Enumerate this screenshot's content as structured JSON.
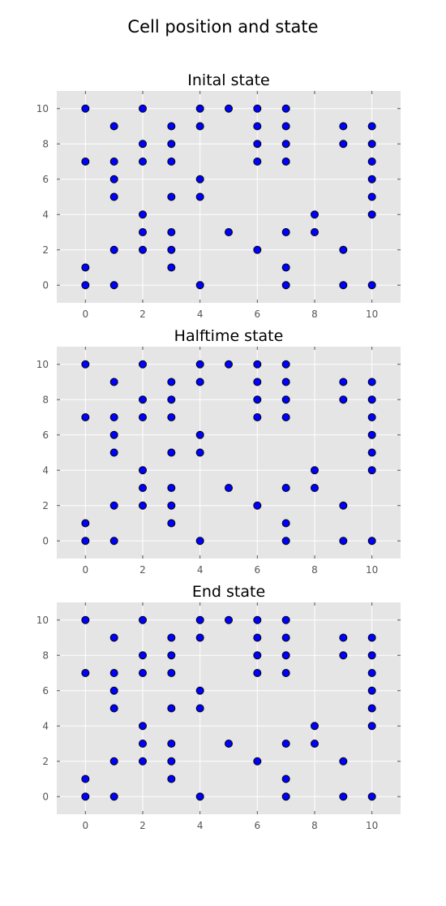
{
  "figure": {
    "title": "Cell position and state"
  },
  "chart_data": [
    {
      "type": "scatter",
      "title": "Inital state",
      "xlim": [
        -1,
        11
      ],
      "ylim": [
        -1,
        11
      ],
      "x_ticks": [
        0,
        2,
        4,
        6,
        8,
        10
      ],
      "y_ticks": [
        0,
        2,
        4,
        6,
        8,
        10
      ],
      "grid": true,
      "marker_color": "#0000ff",
      "points": [
        [
          0,
          10
        ],
        [
          2,
          10
        ],
        [
          4,
          10
        ],
        [
          5,
          10
        ],
        [
          6,
          10
        ],
        [
          7,
          10
        ],
        [
          1,
          9
        ],
        [
          3,
          9
        ],
        [
          4,
          9
        ],
        [
          6,
          9
        ],
        [
          7,
          9
        ],
        [
          9,
          9
        ],
        [
          10,
          9
        ],
        [
          2,
          8
        ],
        [
          3,
          8
        ],
        [
          6,
          8
        ],
        [
          7,
          8
        ],
        [
          9,
          8
        ],
        [
          10,
          8
        ],
        [
          0,
          7
        ],
        [
          1,
          7
        ],
        [
          2,
          7
        ],
        [
          3,
          7
        ],
        [
          6,
          7
        ],
        [
          7,
          7
        ],
        [
          10,
          7
        ],
        [
          1,
          6
        ],
        [
          4,
          6
        ],
        [
          10,
          6
        ],
        [
          1,
          5
        ],
        [
          3,
          5
        ],
        [
          4,
          5
        ],
        [
          10,
          5
        ],
        [
          2,
          4
        ],
        [
          8,
          4
        ],
        [
          10,
          4
        ],
        [
          2,
          3
        ],
        [
          3,
          3
        ],
        [
          5,
          3
        ],
        [
          7,
          3
        ],
        [
          8,
          3
        ],
        [
          1,
          2
        ],
        [
          2,
          2
        ],
        [
          3,
          2
        ],
        [
          6,
          2
        ],
        [
          9,
          2
        ],
        [
          0,
          1
        ],
        [
          3,
          1
        ],
        [
          7,
          1
        ],
        [
          0,
          0
        ],
        [
          1,
          0
        ],
        [
          4,
          0
        ],
        [
          7,
          0
        ],
        [
          9,
          0
        ],
        [
          10,
          0
        ]
      ]
    },
    {
      "type": "scatter",
      "title": "Halftime state",
      "xlim": [
        -1,
        11
      ],
      "ylim": [
        -1,
        11
      ],
      "x_ticks": [
        0,
        2,
        4,
        6,
        8,
        10
      ],
      "y_ticks": [
        0,
        2,
        4,
        6,
        8,
        10
      ],
      "grid": true,
      "marker_color": "#0000ff",
      "points": [
        [
          0,
          10
        ],
        [
          2,
          10
        ],
        [
          4,
          10
        ],
        [
          5,
          10
        ],
        [
          6,
          10
        ],
        [
          7,
          10
        ],
        [
          1,
          9
        ],
        [
          3,
          9
        ],
        [
          4,
          9
        ],
        [
          6,
          9
        ],
        [
          7,
          9
        ],
        [
          9,
          9
        ],
        [
          10,
          9
        ],
        [
          2,
          8
        ],
        [
          3,
          8
        ],
        [
          6,
          8
        ],
        [
          7,
          8
        ],
        [
          9,
          8
        ],
        [
          10,
          8
        ],
        [
          0,
          7
        ],
        [
          1,
          7
        ],
        [
          2,
          7
        ],
        [
          3,
          7
        ],
        [
          6,
          7
        ],
        [
          7,
          7
        ],
        [
          10,
          7
        ],
        [
          1,
          6
        ],
        [
          4,
          6
        ],
        [
          10,
          6
        ],
        [
          1,
          5
        ],
        [
          3,
          5
        ],
        [
          4,
          5
        ],
        [
          10,
          5
        ],
        [
          2,
          4
        ],
        [
          8,
          4
        ],
        [
          10,
          4
        ],
        [
          2,
          3
        ],
        [
          3,
          3
        ],
        [
          5,
          3
        ],
        [
          7,
          3
        ],
        [
          8,
          3
        ],
        [
          1,
          2
        ],
        [
          2,
          2
        ],
        [
          3,
          2
        ],
        [
          6,
          2
        ],
        [
          9,
          2
        ],
        [
          0,
          1
        ],
        [
          3,
          1
        ],
        [
          7,
          1
        ],
        [
          0,
          0
        ],
        [
          1,
          0
        ],
        [
          4,
          0
        ],
        [
          7,
          0
        ],
        [
          9,
          0
        ],
        [
          10,
          0
        ]
      ]
    },
    {
      "type": "scatter",
      "title": "End state",
      "xlim": [
        -1,
        11
      ],
      "ylim": [
        -1,
        11
      ],
      "x_ticks": [
        0,
        2,
        4,
        6,
        8,
        10
      ],
      "y_ticks": [
        0,
        2,
        4,
        6,
        8,
        10
      ],
      "grid": true,
      "marker_color": "#0000ff",
      "points": [
        [
          0,
          10
        ],
        [
          2,
          10
        ],
        [
          4,
          10
        ],
        [
          5,
          10
        ],
        [
          6,
          10
        ],
        [
          7,
          10
        ],
        [
          1,
          9
        ],
        [
          3,
          9
        ],
        [
          4,
          9
        ],
        [
          6,
          9
        ],
        [
          7,
          9
        ],
        [
          9,
          9
        ],
        [
          10,
          9
        ],
        [
          2,
          8
        ],
        [
          3,
          8
        ],
        [
          6,
          8
        ],
        [
          7,
          8
        ],
        [
          9,
          8
        ],
        [
          10,
          8
        ],
        [
          0,
          7
        ],
        [
          1,
          7
        ],
        [
          2,
          7
        ],
        [
          3,
          7
        ],
        [
          6,
          7
        ],
        [
          7,
          7
        ],
        [
          10,
          7
        ],
        [
          1,
          6
        ],
        [
          4,
          6
        ],
        [
          10,
          6
        ],
        [
          1,
          5
        ],
        [
          3,
          5
        ],
        [
          4,
          5
        ],
        [
          10,
          5
        ],
        [
          2,
          4
        ],
        [
          8,
          4
        ],
        [
          10,
          4
        ],
        [
          2,
          3
        ],
        [
          3,
          3
        ],
        [
          5,
          3
        ],
        [
          7,
          3
        ],
        [
          8,
          3
        ],
        [
          1,
          2
        ],
        [
          2,
          2
        ],
        [
          3,
          2
        ],
        [
          6,
          2
        ],
        [
          9,
          2
        ],
        [
          0,
          1
        ],
        [
          3,
          1
        ],
        [
          7,
          1
        ],
        [
          0,
          0
        ],
        [
          1,
          0
        ],
        [
          4,
          0
        ],
        [
          7,
          0
        ],
        [
          9,
          0
        ],
        [
          10,
          0
        ]
      ]
    }
  ]
}
